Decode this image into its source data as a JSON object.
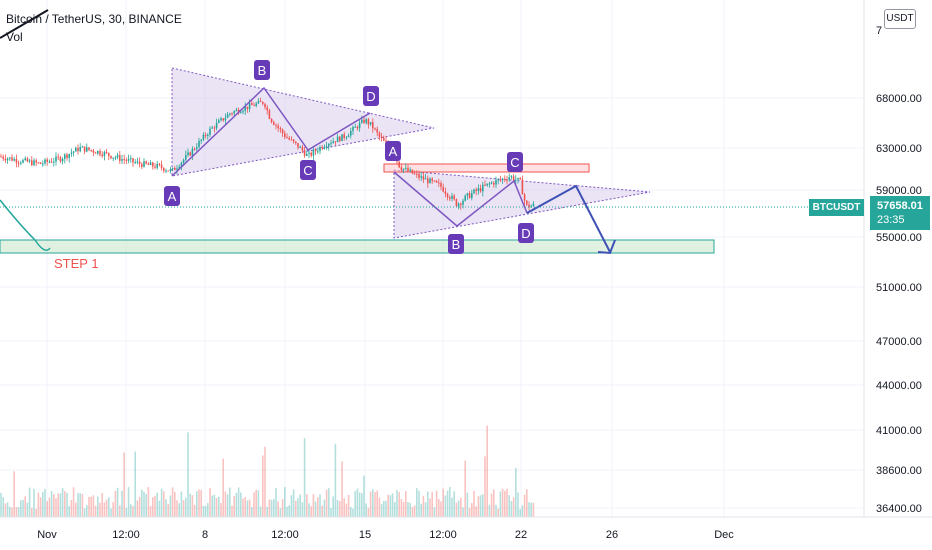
{
  "header": {
    "symbol_line": "Bitcoin / TetherUS, 30, BINANCE",
    "volume_label": "Vol"
  },
  "currency_button": "USDT",
  "price_tag": {
    "symbol": "BTCUSDT",
    "price": "57658.01",
    "countdown": "23:35"
  },
  "colors": {
    "up": "#26a69a",
    "down": "#ef5350",
    "pattern_fill": "#d1c4e9",
    "pattern_line": "#7e57c2",
    "label_bg": "#673ab7",
    "projection": "#3f51b5",
    "support_fill": "#c8e6c9",
    "support_stroke": "#26a69a",
    "resistance_fill": "#ffcdd2",
    "resistance_stroke": "#ef5350",
    "step_text": "#ef5350",
    "price_line": "#26a69a"
  },
  "annotations": {
    "step_label": "STEP 1",
    "pattern1_labels": [
      "A",
      "B",
      "C",
      "D"
    ],
    "pattern2_labels": [
      "A",
      "B",
      "C",
      "D"
    ]
  },
  "chart_data": {
    "type": "candlestick",
    "title": "Bitcoin / TetherUS, 30, BINANCE",
    "y_ticks": [
      "7",
      "68000.00",
      "63000.00",
      "59000.00",
      "55000.00",
      "51000.00",
      "47000.00",
      "44000.00",
      "41000.00",
      "38600.00",
      "36400.00"
    ],
    "x_ticks": [
      "Nov",
      "12:00",
      "8",
      "12:00",
      "15",
      "12:00",
      "22",
      "26",
      "Dec"
    ],
    "last_price": 57658.01,
    "price_series_approx": [
      [
        0,
        62200
      ],
      [
        20,
        61800
      ],
      [
        40,
        61500
      ],
      [
        60,
        62000
      ],
      [
        80,
        63000
      ],
      [
        100,
        62600
      ],
      [
        120,
        62000
      ],
      [
        140,
        61500
      ],
      [
        160,
        61200
      ],
      [
        172,
        60800
      ],
      [
        190,
        62500
      ],
      [
        210,
        64800
      ],
      [
        230,
        66500
      ],
      [
        250,
        67200
      ],
      [
        264,
        67600
      ],
      [
        270,
        66000
      ],
      [
        285,
        64200
      ],
      [
        300,
        63000
      ],
      [
        308,
        62200
      ],
      [
        325,
        63400
      ],
      [
        345,
        64200
      ],
      [
        365,
        65800
      ],
      [
        372,
        65200
      ],
      [
        380,
        64000
      ],
      [
        392,
        62800
      ],
      [
        400,
        61200
      ],
      [
        420,
        60200
      ],
      [
        440,
        59400
      ],
      [
        457,
        57800
      ],
      [
        470,
        58600
      ],
      [
        490,
        59600
      ],
      [
        510,
        60300
      ],
      [
        520,
        59800
      ],
      [
        526,
        57600
      ],
      [
        535,
        57700
      ]
    ],
    "pattern1_points": {
      "A": 61300,
      "B": 67800,
      "C": 62400,
      "D": 66600
    },
    "pattern2_points": {
      "A": 62300,
      "B": 56900,
      "C": 60600,
      "D": 56900
    },
    "resistance_zone": [
      60700,
      61600
    ],
    "support_zone": [
      54400,
      55600
    ],
    "projection": [
      [
        526,
        56700
      ],
      [
        576,
        59400
      ],
      [
        610,
        53700
      ]
    ]
  }
}
